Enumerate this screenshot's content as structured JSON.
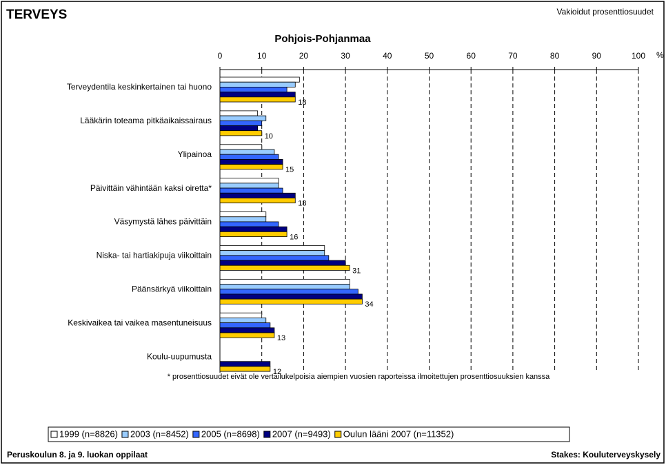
{
  "header": {
    "title": "TERVEYS",
    "note": "Vakioidut prosenttiosuudet"
  },
  "chart_data": {
    "type": "bar",
    "orientation": "horizontal",
    "title": "Pohjois-Pohjanmaa",
    "x_unit": "%",
    "categories": [
      "Terveydentila keskinkertainen tai huono",
      "Lääkärin toteama pitkäaikaissairaus",
      "Ylipainoa",
      "Päivittäin vähintään kaksi oiretta*",
      "Väsymystä lähes päivittäin",
      "Niska- tai hartiakipuja viikoittain",
      "Päänsärkyä viikoittain",
      "Keskivaikea tai vaikea masentuneisuus",
      "Koulu-uupumusta"
    ],
    "series": [
      {
        "name": "1999 (n=8826)",
        "color": "#ffffff",
        "values": [
          19,
          9,
          10,
          14,
          11,
          25,
          31,
          10,
          null
        ]
      },
      {
        "name": "2003 (n=8452)",
        "color": "#99ccff",
        "values": [
          18,
          11,
          13,
          14,
          11,
          25,
          31,
          11,
          null
        ]
      },
      {
        "name": "2005 (n=8698)",
        "color": "#3366ff",
        "values": [
          16,
          10,
          14,
          15,
          14,
          26,
          33,
          12,
          null
        ]
      },
      {
        "name": "2007 (n=9493)",
        "color": "#000080",
        "values": [
          18,
          9,
          15,
          18,
          16,
          30,
          34,
          13,
          12
        ]
      },
      {
        "name": "Oulun lääni 2007 (n=11352)",
        "color": "#ffcc00",
        "values": [
          18,
          10,
          15,
          18,
          16,
          31,
          34,
          13,
          12
        ]
      }
    ],
    "labeled_series": 4,
    "xlim": [
      0,
      100
    ],
    "xticks": [
      0,
      10,
      20,
      30,
      40,
      50,
      60,
      70,
      80,
      90,
      100
    ],
    "grid": true,
    "footnote": "* prosenttiosuudet eivät ole vertailukelpoisia aiempien vuosien raporteissa ilmoitettujen prosenttiosuuksien kanssa"
  },
  "footer": {
    "left": "Peruskoulun 8. ja 9. luokan oppilaat",
    "right": "Stakes: Kouluterveyskysely"
  }
}
